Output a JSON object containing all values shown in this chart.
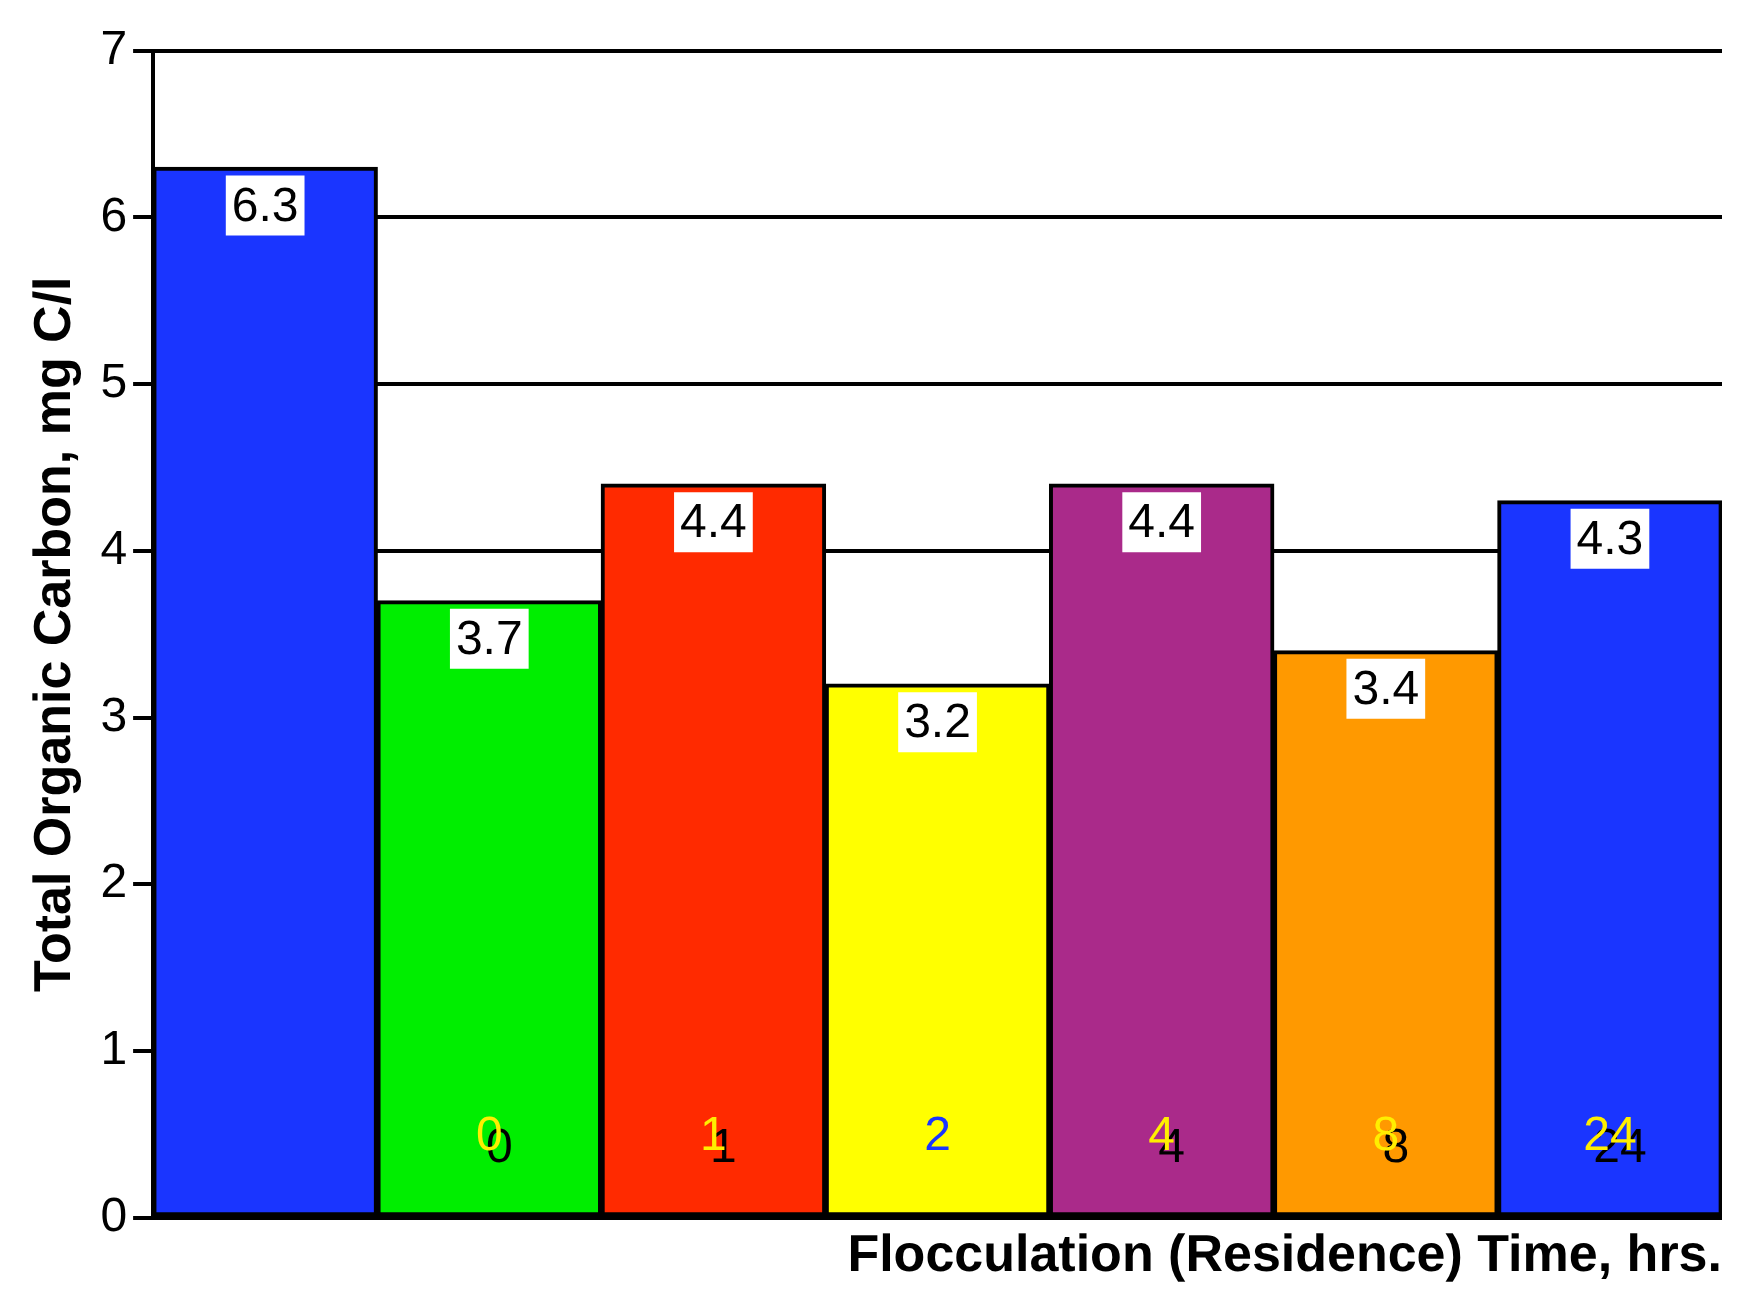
{
  "chart_data": {
    "type": "bar",
    "xlabel": "Flocculation (Residence) Time, hrs.",
    "ylabel": "Total Organic Carbon, mg C/l",
    "categories": [
      null,
      "0",
      "1",
      "2",
      "4",
      "8",
      "24"
    ],
    "values": [
      6.3,
      3.7,
      4.4,
      3.2,
      4.4,
      3.4,
      4.3
    ],
    "colors": [
      "#1a35ff",
      "#00ee00",
      "#ff2a00",
      "#ffff00",
      "#aa2a8a",
      "#ff9900",
      "#1a35ff"
    ],
    "ylim": [
      0,
      7
    ],
    "yticks": [
      0,
      1,
      2,
      3,
      4,
      5,
      6,
      7
    ],
    "grid": "y",
    "data_labels": true,
    "legend": false
  }
}
